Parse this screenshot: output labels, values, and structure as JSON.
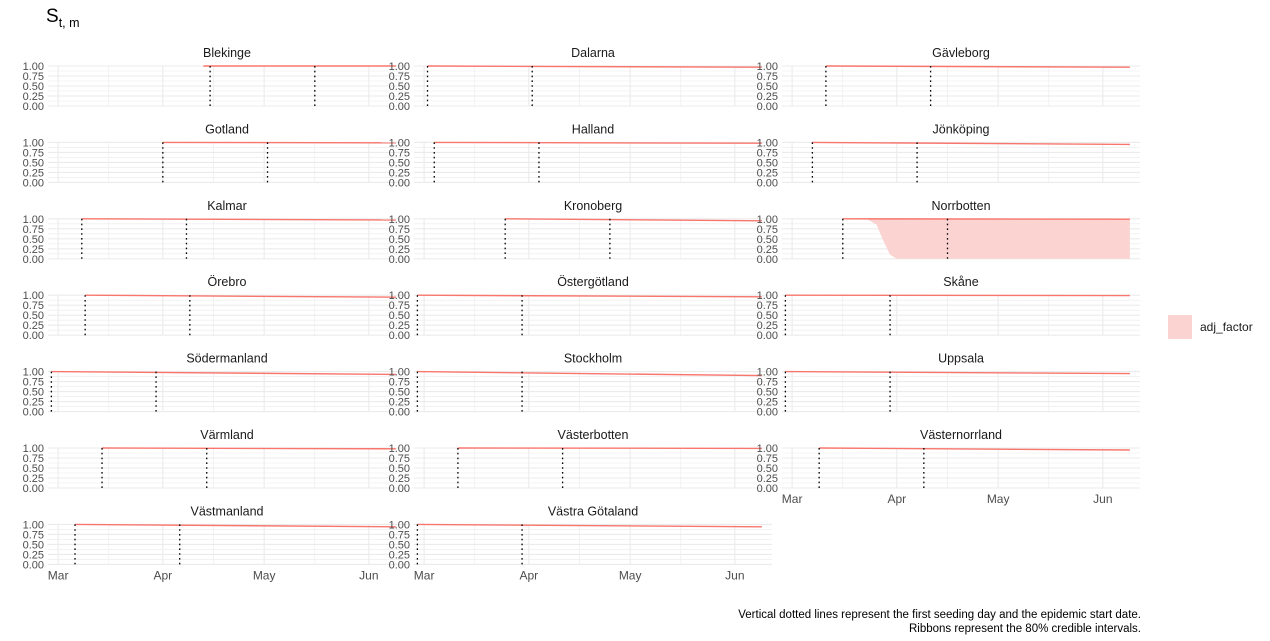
{
  "plot_title": {
    "main": "S",
    "subscript": "t, m"
  },
  "legend": {
    "label": "adj_factor",
    "fill": "#fbd3d0"
  },
  "caption_lines": [
    "Vertical dotted lines represent the first seeding day and the epidemic start date.",
    "Ribbons represent the 80% credible intervals."
  ],
  "colors": {
    "line": "#f8766d",
    "ribbon": "#fbd3d0",
    "grid": "#ebebeb",
    "vline": "#000000"
  },
  "chart_data": {
    "type": "line",
    "facet_layout": "3 columns, 7 rows",
    "x_axis": {
      "ticks": [
        "Mar",
        "Apr",
        "May",
        "Jun"
      ],
      "tick_dates": [
        "2020-03-01",
        "2020-04-01",
        "2020-05-01",
        "2020-06-01"
      ],
      "range": [
        "2020-02-27",
        "2020-06-12"
      ]
    },
    "y_axis": {
      "ticks": [
        "0.00",
        "0.25",
        "0.50",
        "0.75",
        "1.00"
      ],
      "range": [
        0,
        1
      ]
    },
    "grid": true,
    "legend_position": "right",
    "panels": [
      {
        "name": "Blekinge",
        "start": "2020-04-13",
        "end": "2020-06-09",
        "y_end": 1.0,
        "vlines": [
          "2020-04-15",
          "2020-05-16"
        ]
      },
      {
        "name": "Dalarna",
        "start": "2020-03-02",
        "end": "2020-06-09",
        "y_end": 0.97,
        "vlines": [
          "2020-03-02",
          "2020-04-02"
        ]
      },
      {
        "name": "Gävleborg",
        "start": "2020-03-11",
        "end": "2020-06-09",
        "y_end": 0.97,
        "vlines": [
          "2020-03-11",
          "2020-04-11"
        ]
      },
      {
        "name": "Gotland",
        "start": "2020-04-01",
        "end": "2020-06-09",
        "y_end": 0.99,
        "vlines": [
          "2020-04-01",
          "2020-05-02"
        ]
      },
      {
        "name": "Halland",
        "start": "2020-03-04",
        "end": "2020-06-09",
        "y_end": 0.98,
        "vlines": [
          "2020-03-04",
          "2020-04-04"
        ]
      },
      {
        "name": "Jönköping",
        "start": "2020-03-07",
        "end": "2020-06-09",
        "y_end": 0.95,
        "vlines": [
          "2020-03-07",
          "2020-04-07"
        ]
      },
      {
        "name": "Kalmar",
        "start": "2020-03-08",
        "end": "2020-06-09",
        "y_end": 0.97,
        "vlines": [
          "2020-03-08",
          "2020-04-08"
        ]
      },
      {
        "name": "Kronoberg",
        "start": "2020-03-25",
        "end": "2020-06-09",
        "y_end": 0.95,
        "vlines": [
          "2020-03-25",
          "2020-04-25"
        ]
      },
      {
        "name": "Norrbotten",
        "start": "2020-03-16",
        "end": "2020-06-09",
        "y_end": 0.99,
        "vlines": [
          "2020-03-16",
          "2020-04-16"
        ],
        "ribbon": {
          "lower": [
            [
              "2020-03-16",
              1.0
            ],
            [
              "2020-03-23",
              1.0
            ],
            [
              "2020-03-26",
              0.85
            ],
            [
              "2020-03-28",
              0.45
            ],
            [
              "2020-03-30",
              0.1
            ],
            [
              "2020-04-01",
              0.0
            ],
            [
              "2020-06-09",
              0.0
            ]
          ],
          "upper": 1.0
        }
      },
      {
        "name": "Örebro",
        "start": "2020-03-09",
        "end": "2020-06-09",
        "y_end": 0.95,
        "vlines": [
          "2020-03-09",
          "2020-04-09"
        ]
      },
      {
        "name": "Östergötland",
        "start": "2020-02-28",
        "end": "2020-06-09",
        "y_end": 0.96,
        "vlines": [
          "2020-02-28",
          "2020-03-30"
        ]
      },
      {
        "name": "Skåne",
        "start": "2020-02-28",
        "end": "2020-06-09",
        "y_end": 0.99,
        "vlines": [
          "2020-02-28",
          "2020-03-30"
        ]
      },
      {
        "name": "Södermanland",
        "start": "2020-02-28",
        "end": "2020-06-09",
        "y_end": 0.93,
        "vlines": [
          "2020-02-28",
          "2020-03-30"
        ]
      },
      {
        "name": "Stockholm",
        "start": "2020-02-28",
        "end": "2020-06-09",
        "y_end": 0.9,
        "vlines": [
          "2020-02-28",
          "2020-03-30"
        ]
      },
      {
        "name": "Uppsala",
        "start": "2020-02-28",
        "end": "2020-06-09",
        "y_end": 0.95,
        "vlines": [
          "2020-02-28",
          "2020-03-30"
        ]
      },
      {
        "name": "Värmland",
        "start": "2020-03-14",
        "end": "2020-06-09",
        "y_end": 0.98,
        "vlines": [
          "2020-03-14",
          "2020-04-14"
        ]
      },
      {
        "name": "Västerbotten",
        "start": "2020-03-11",
        "end": "2020-06-09",
        "y_end": 0.99,
        "vlines": [
          "2020-03-11",
          "2020-04-11"
        ]
      },
      {
        "name": "Västernorrland",
        "start": "2020-03-09",
        "end": "2020-06-09",
        "y_end": 0.95,
        "vlines": [
          "2020-03-09",
          "2020-04-09"
        ]
      },
      {
        "name": "Västmanland",
        "start": "2020-03-06",
        "end": "2020-06-09",
        "y_end": 0.94,
        "vlines": [
          "2020-03-06",
          "2020-04-06"
        ]
      },
      {
        "name": "Västra Götaland",
        "start": "2020-02-28",
        "end": "2020-06-09",
        "y_end": 0.94,
        "vlines": [
          "2020-02-28",
          "2020-03-30"
        ]
      }
    ]
  }
}
